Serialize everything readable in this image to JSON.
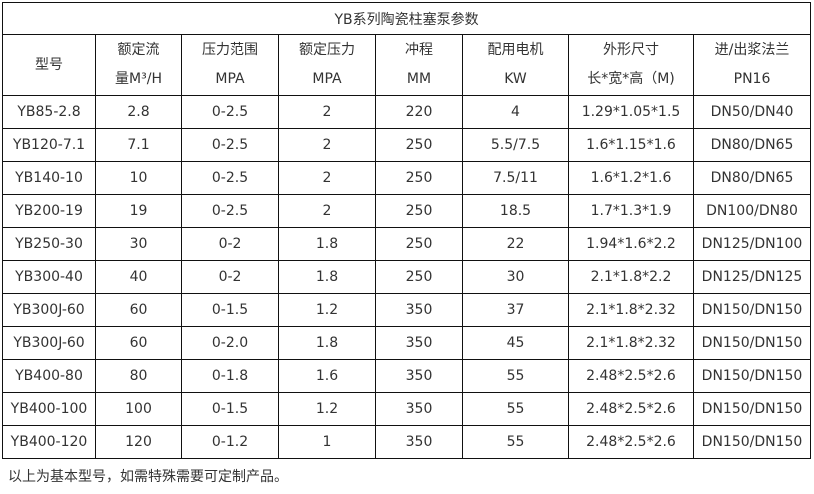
{
  "title": "YB系列陶瓷柱塞泵参数",
  "headers": [
    [
      "型号"
    ],
    [
      "额定流",
      "量M³/H"
    ],
    [
      "压力范围",
      "MPA"
    ],
    [
      "额定压力",
      "MPA"
    ],
    [
      "冲程",
      "MM"
    ],
    [
      "配用电机",
      "KW"
    ],
    [
      "外形尺寸",
      "长*宽*高（M)"
    ],
    [
      "进/出浆法兰",
      "PN16"
    ]
  ],
  "rows": [
    [
      "YB85-2.8",
      "2.8",
      "0-2.5",
      "2",
      "220",
      "4",
      "1.29*1.05*1.5",
      "DN50/DN40"
    ],
    [
      "YB120-7.1",
      "7.1",
      "0-2.5",
      "2",
      "250",
      "5.5/7.5",
      "1.6*1.15*1.6",
      "DN80/DN65"
    ],
    [
      "YB140-10",
      "10",
      "0-2.5",
      "2",
      "250",
      "7.5/11",
      "1.6*1.2*1.6",
      "DN80/DN65"
    ],
    [
      "YB200-19",
      "19",
      "0-2.5",
      "2",
      "250",
      "18.5",
      "1.7*1.3*1.9",
      "DN100/DN80"
    ],
    [
      "YB250-30",
      "30",
      "0-2",
      "1.8",
      "250",
      "22",
      "1.94*1.6*2.2",
      "DN125/DN100"
    ],
    [
      "YB300-40",
      "40",
      "0-2",
      "1.8",
      "250",
      "30",
      "2.1*1.8*2.2",
      "DN125/DN125"
    ],
    [
      "YB300J-60",
      "60",
      "0-1.5",
      "1.2",
      "350",
      "37",
      "2.1*1.8*2.32",
      "DN150/DN150"
    ],
    [
      "YB300J-60",
      "60",
      "0-2.0",
      "1.8",
      "350",
      "45",
      "2.1*1.8*2.32",
      "DN150/DN150"
    ],
    [
      "YB400-80",
      "80",
      "0-1.8",
      "1.6",
      "350",
      "55",
      "2.48*2.5*2.6",
      "DN150/DN150"
    ],
    [
      "YB400-100",
      "100",
      "0-1.5",
      "1.2",
      "350",
      "55",
      "2.48*2.5*2.6",
      "DN150/DN150"
    ],
    [
      "YB400-120",
      "120",
      "0-1.2",
      "1",
      "350",
      "55",
      "2.48*2.5*2.6",
      "DN150/DN150"
    ]
  ],
  "footnote": "以上为基本型号，如需特殊需要可定制产品。"
}
